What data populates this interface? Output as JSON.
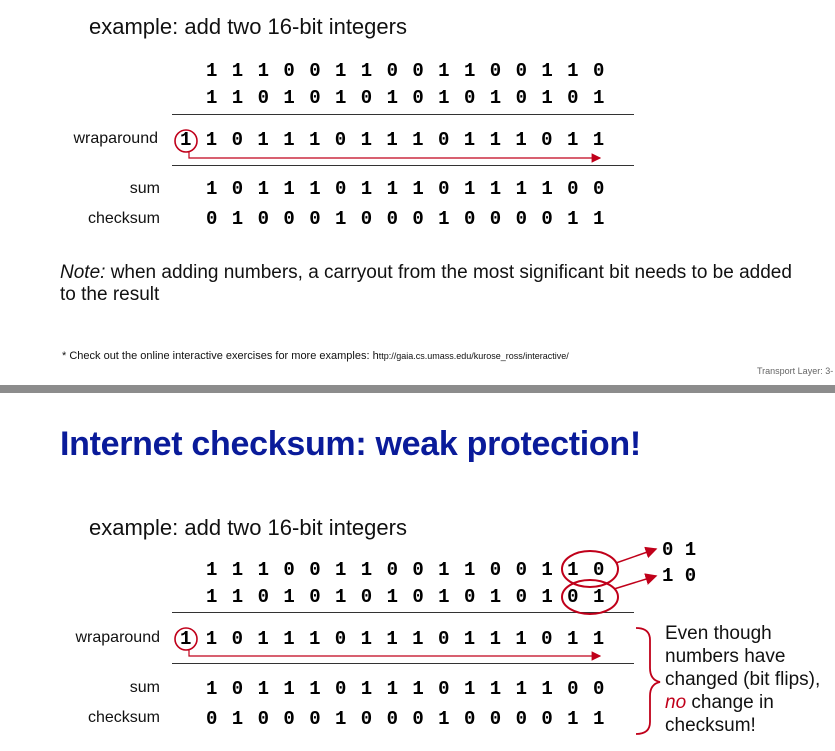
{
  "top": {
    "example": "example: add two 16-bit integers",
    "row1": [
      "1",
      "1",
      "1",
      "0",
      "0",
      "1",
      "1",
      "0",
      "0",
      "1",
      "1",
      "0",
      "0",
      "1",
      "1",
      "0"
    ],
    "row2": [
      "1",
      "1",
      "0",
      "1",
      "0",
      "1",
      "0",
      "1",
      "0",
      "1",
      "0",
      "1",
      "0",
      "1",
      "0",
      "1"
    ],
    "wrap_label": "wraparound",
    "wrap_bits": [
      "1",
      "1",
      "0",
      "1",
      "1",
      "1",
      "0",
      "1",
      "1",
      "1",
      "0",
      "1",
      "1",
      "1",
      "0",
      "1",
      "1"
    ],
    "sum_label": "sum",
    "sum_bits": [
      "1",
      "0",
      "1",
      "1",
      "1",
      "0",
      "1",
      "1",
      "1",
      "0",
      "1",
      "1",
      "1",
      "1",
      "0",
      "0"
    ],
    "checksum_label": "checksum",
    "checksum_bits": [
      "0",
      "1",
      "0",
      "0",
      "0",
      "1",
      "0",
      "0",
      "0",
      "1",
      "0",
      "0",
      "0",
      "0",
      "1",
      "1"
    ],
    "note_lead": "Note:",
    "note_text": " when adding numbers, a carryout from the most significant bit needs to be added to the result",
    "footnote_text": "* Check out the online interactive exercises for more examples: h",
    "footnote_url": "ttp://gaia.cs.umass.edu/kurose_ross/interactive/",
    "footer": "Transport Layer: 3-"
  },
  "bottom": {
    "title": "Internet checksum: weak protection!",
    "example": "example: add two 16-bit integers",
    "row1": [
      "1",
      "1",
      "1",
      "0",
      "0",
      "1",
      "1",
      "0",
      "0",
      "1",
      "1",
      "0",
      "0",
      "1",
      "1",
      "0"
    ],
    "row2": [
      "1",
      "1",
      "0",
      "1",
      "0",
      "1",
      "0",
      "1",
      "0",
      "1",
      "0",
      "1",
      "0",
      "1",
      "0",
      "1"
    ],
    "flip1": "0 1",
    "flip2": "1 0",
    "wrap_label": "wraparound",
    "wrap_bits": [
      "1",
      "1",
      "0",
      "1",
      "1",
      "1",
      "0",
      "1",
      "1",
      "1",
      "0",
      "1",
      "1",
      "1",
      "0",
      "1",
      "1"
    ],
    "sum_label": "sum",
    "sum_bits": [
      "1",
      "0",
      "1",
      "1",
      "1",
      "0",
      "1",
      "1",
      "1",
      "0",
      "1",
      "1",
      "1",
      "1",
      "0",
      "0"
    ],
    "checksum_label": "checksum",
    "checksum_bits": [
      "0",
      "1",
      "0",
      "0",
      "0",
      "1",
      "0",
      "0",
      "0",
      "1",
      "0",
      "0",
      "0",
      "0",
      "1",
      "1"
    ],
    "side_pre": "Even though numbers have changed (bit flips), ",
    "side_em": "no",
    "side_post": " change in checksum!"
  },
  "colors": {
    "accent_red": "#c0001a",
    "title_blue": "#0a1b9a",
    "divider": "#8c8c8c"
  }
}
